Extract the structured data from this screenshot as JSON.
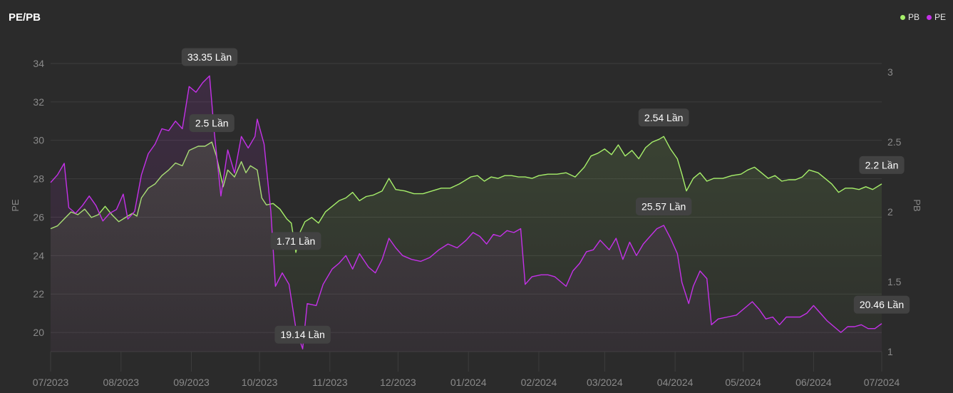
{
  "title": "PE/PB",
  "colors": {
    "pb": "#a6ef6a",
    "pe": "#c431e8",
    "grid": "#3d3d3d",
    "callout_bg": "#424242"
  },
  "chart_data": {
    "type": "line",
    "title": "PE/PB",
    "legend": {
      "position": "top-right",
      "entries": [
        "PB",
        "PE"
      ]
    },
    "x_ticks": [
      "07/2023",
      "08/2023",
      "09/2023",
      "10/2023",
      "11/2023",
      "12/2023",
      "01/2024",
      "02/2024",
      "03/2024",
      "04/2024",
      "05/2024",
      "06/2024",
      "07/2024"
    ],
    "x_range": [
      "2023-07-01",
      "2024-07-01"
    ],
    "y_left": {
      "label": "PE",
      "range": [
        19,
        35
      ],
      "ticks": [
        "20",
        "22",
        "24",
        "26",
        "28",
        "30",
        "32",
        "34"
      ]
    },
    "y_right": {
      "label": "PB",
      "range": [
        1,
        3.2
      ],
      "ticks": [
        "1",
        "1.5",
        "2",
        "2.5",
        "3"
      ]
    },
    "grid": true,
    "series": [
      {
        "name": "PB",
        "axis": "right",
        "color": "#a6ef6a",
        "points": [
          [
            "2023-07-01",
            1.88
          ],
          [
            "2023-07-04",
            1.9
          ],
          [
            "2023-07-07",
            1.95
          ],
          [
            "2023-07-10",
            2.0
          ],
          [
            "2023-07-13",
            1.98
          ],
          [
            "2023-07-16",
            2.02
          ],
          [
            "2023-07-19",
            1.96
          ],
          [
            "2023-07-22",
            1.98
          ],
          [
            "2023-07-25",
            2.04
          ],
          [
            "2023-07-28",
            1.98
          ],
          [
            "2023-07-31",
            1.93
          ],
          [
            "2023-08-03",
            1.96
          ],
          [
            "2023-08-06",
            1.99
          ],
          [
            "2023-08-08",
            1.97
          ],
          [
            "2023-08-10",
            2.1
          ],
          [
            "2023-08-13",
            2.17
          ],
          [
            "2023-08-16",
            2.2
          ],
          [
            "2023-08-19",
            2.26
          ],
          [
            "2023-08-22",
            2.3
          ],
          [
            "2023-08-25",
            2.35
          ],
          [
            "2023-08-28",
            2.33
          ],
          [
            "2023-08-31",
            2.44
          ],
          [
            "2023-09-04",
            2.47
          ],
          [
            "2023-09-07",
            2.47
          ],
          [
            "2023-09-10",
            2.5
          ],
          [
            "2023-09-12",
            2.4
          ],
          [
            "2023-09-15",
            2.18
          ],
          [
            "2023-09-17",
            2.3
          ],
          [
            "2023-09-20",
            2.25
          ],
          [
            "2023-09-23",
            2.36
          ],
          [
            "2023-09-25",
            2.28
          ],
          [
            "2023-09-27",
            2.33
          ],
          [
            "2023-09-30",
            2.3
          ],
          [
            "2023-10-02",
            2.1
          ],
          [
            "2023-10-04",
            2.05
          ],
          [
            "2023-10-07",
            2.06
          ],
          [
            "2023-10-10",
            2.02
          ],
          [
            "2023-10-13",
            1.95
          ],
          [
            "2023-10-15",
            1.92
          ],
          [
            "2023-10-17",
            1.71
          ],
          [
            "2023-10-19",
            1.86
          ],
          [
            "2023-10-21",
            1.93
          ],
          [
            "2023-10-24",
            1.96
          ],
          [
            "2023-10-27",
            1.92
          ],
          [
            "2023-10-30",
            2.0
          ],
          [
            "2023-11-02",
            2.04
          ],
          [
            "2023-11-05",
            2.08
          ],
          [
            "2023-11-08",
            2.1
          ],
          [
            "2023-11-11",
            2.14
          ],
          [
            "2023-11-14",
            2.08
          ],
          [
            "2023-11-17",
            2.11
          ],
          [
            "2023-11-20",
            2.12
          ],
          [
            "2023-11-24",
            2.15
          ],
          [
            "2023-11-27",
            2.24
          ],
          [
            "2023-11-30",
            2.16
          ],
          [
            "2023-12-04",
            2.15
          ],
          [
            "2023-12-08",
            2.13
          ],
          [
            "2023-12-12",
            2.13
          ],
          [
            "2023-12-16",
            2.15
          ],
          [
            "2023-12-20",
            2.17
          ],
          [
            "2023-12-24",
            2.17
          ],
          [
            "2023-12-28",
            2.2
          ],
          [
            "2024-01-02",
            2.25
          ],
          [
            "2024-01-05",
            2.26
          ],
          [
            "2024-01-08",
            2.22
          ],
          [
            "2024-01-11",
            2.25
          ],
          [
            "2024-01-14",
            2.24
          ],
          [
            "2024-01-17",
            2.26
          ],
          [
            "2024-01-20",
            2.26
          ],
          [
            "2024-01-23",
            2.25
          ],
          [
            "2024-01-26",
            2.25
          ],
          [
            "2024-01-29",
            2.24
          ],
          [
            "2024-02-01",
            2.26
          ],
          [
            "2024-02-05",
            2.27
          ],
          [
            "2024-02-09",
            2.27
          ],
          [
            "2024-02-13",
            2.28
          ],
          [
            "2024-02-17",
            2.25
          ],
          [
            "2024-02-21",
            2.32
          ],
          [
            "2024-02-24",
            2.4
          ],
          [
            "2024-02-27",
            2.42
          ],
          [
            "2024-03-01",
            2.45
          ],
          [
            "2024-03-04",
            2.41
          ],
          [
            "2024-03-07",
            2.48
          ],
          [
            "2024-03-10",
            2.4
          ],
          [
            "2024-03-13",
            2.44
          ],
          [
            "2024-03-16",
            2.38
          ],
          [
            "2024-03-19",
            2.46
          ],
          [
            "2024-03-22",
            2.5
          ],
          [
            "2024-03-25",
            2.52
          ],
          [
            "2024-03-27",
            2.54
          ],
          [
            "2024-03-30",
            2.45
          ],
          [
            "2024-04-02",
            2.38
          ],
          [
            "2024-04-04",
            2.27
          ],
          [
            "2024-04-06",
            2.15
          ],
          [
            "2024-04-09",
            2.24
          ],
          [
            "2024-04-12",
            2.28
          ],
          [
            "2024-04-15",
            2.22
          ],
          [
            "2024-04-18",
            2.24
          ],
          [
            "2024-04-22",
            2.24
          ],
          [
            "2024-04-26",
            2.26
          ],
          [
            "2024-04-30",
            2.27
          ],
          [
            "2024-05-03",
            2.3
          ],
          [
            "2024-05-06",
            2.32
          ],
          [
            "2024-05-09",
            2.28
          ],
          [
            "2024-05-12",
            2.24
          ],
          [
            "2024-05-15",
            2.26
          ],
          [
            "2024-05-18",
            2.22
          ],
          [
            "2024-05-21",
            2.23
          ],
          [
            "2024-05-24",
            2.23
          ],
          [
            "2024-05-27",
            2.25
          ],
          [
            "2024-05-30",
            2.3
          ],
          [
            "2024-06-03",
            2.28
          ],
          [
            "2024-06-06",
            2.24
          ],
          [
            "2024-06-09",
            2.2
          ],
          [
            "2024-06-12",
            2.14
          ],
          [
            "2024-06-15",
            2.17
          ],
          [
            "2024-06-18",
            2.17
          ],
          [
            "2024-06-21",
            2.16
          ],
          [
            "2024-06-24",
            2.18
          ],
          [
            "2024-06-27",
            2.16
          ],
          [
            "2024-07-01",
            2.2
          ]
        ]
      },
      {
        "name": "PE",
        "axis": "left",
        "color": "#c431e8",
        "points": [
          [
            "2023-07-01",
            27.8
          ],
          [
            "2023-07-04",
            28.2
          ],
          [
            "2023-07-07",
            28.8
          ],
          [
            "2023-07-09",
            26.5
          ],
          [
            "2023-07-12",
            26.2
          ],
          [
            "2023-07-15",
            26.6
          ],
          [
            "2023-07-18",
            27.1
          ],
          [
            "2023-07-21",
            26.6
          ],
          [
            "2023-07-24",
            25.8
          ],
          [
            "2023-07-27",
            26.2
          ],
          [
            "2023-07-30",
            26.4
          ],
          [
            "2023-08-02",
            27.2
          ],
          [
            "2023-08-04",
            25.9
          ],
          [
            "2023-08-07",
            26.3
          ],
          [
            "2023-08-10",
            28.2
          ],
          [
            "2023-08-13",
            29.3
          ],
          [
            "2023-08-16",
            29.8
          ],
          [
            "2023-08-19",
            30.6
          ],
          [
            "2023-08-22",
            30.5
          ],
          [
            "2023-08-25",
            31.0
          ],
          [
            "2023-08-28",
            30.6
          ],
          [
            "2023-08-31",
            32.8
          ],
          [
            "2023-09-03",
            32.5
          ],
          [
            "2023-09-06",
            33.0
          ],
          [
            "2023-09-09",
            33.35
          ],
          [
            "2023-09-11",
            30.5
          ],
          [
            "2023-09-14",
            27.1
          ],
          [
            "2023-09-17",
            29.5
          ],
          [
            "2023-09-20",
            28.3
          ],
          [
            "2023-09-23",
            30.2
          ],
          [
            "2023-09-26",
            29.6
          ],
          [
            "2023-09-29",
            30.2
          ],
          [
            "2023-09-30",
            31.1
          ],
          [
            "2023-10-03",
            29.8
          ],
          [
            "2023-10-06",
            26.3
          ],
          [
            "2023-10-08",
            22.4
          ],
          [
            "2023-10-11",
            23.1
          ],
          [
            "2023-10-14",
            22.5
          ],
          [
            "2023-10-17",
            20.2
          ],
          [
            "2023-10-20",
            19.14
          ],
          [
            "2023-10-22",
            21.5
          ],
          [
            "2023-10-26",
            21.4
          ],
          [
            "2023-10-29",
            22.5
          ],
          [
            "2023-11-02",
            23.3
          ],
          [
            "2023-11-05",
            23.6
          ],
          [
            "2023-11-08",
            24.0
          ],
          [
            "2023-11-11",
            23.3
          ],
          [
            "2023-11-14",
            24.1
          ],
          [
            "2023-11-18",
            23.4
          ],
          [
            "2023-11-21",
            23.1
          ],
          [
            "2023-11-24",
            23.8
          ],
          [
            "2023-11-27",
            24.9
          ],
          [
            "2023-11-30",
            24.4
          ],
          [
            "2023-12-03",
            24.0
          ],
          [
            "2023-12-07",
            23.8
          ],
          [
            "2023-12-11",
            23.7
          ],
          [
            "2023-12-15",
            23.9
          ],
          [
            "2023-12-19",
            24.3
          ],
          [
            "2023-12-23",
            24.6
          ],
          [
            "2023-12-27",
            24.4
          ],
          [
            "2023-12-31",
            24.8
          ],
          [
            "2024-01-03",
            25.2
          ],
          [
            "2024-01-06",
            25.0
          ],
          [
            "2024-01-09",
            24.6
          ],
          [
            "2024-01-12",
            25.1
          ],
          [
            "2024-01-15",
            25.0
          ],
          [
            "2024-01-18",
            25.3
          ],
          [
            "2024-01-21",
            25.2
          ],
          [
            "2024-01-24",
            25.4
          ],
          [
            "2024-01-26",
            22.5
          ],
          [
            "2024-01-29",
            22.9
          ],
          [
            "2024-02-02",
            23.0
          ],
          [
            "2024-02-05",
            23.0
          ],
          [
            "2024-02-08",
            22.9
          ],
          [
            "2024-02-13",
            22.4
          ],
          [
            "2024-02-16",
            23.2
          ],
          [
            "2024-02-19",
            23.6
          ],
          [
            "2024-02-22",
            24.2
          ],
          [
            "2024-02-25",
            24.3
          ],
          [
            "2024-02-28",
            24.8
          ],
          [
            "2024-03-03",
            24.3
          ],
          [
            "2024-03-06",
            24.9
          ],
          [
            "2024-03-09",
            23.8
          ],
          [
            "2024-03-12",
            24.7
          ],
          [
            "2024-03-15",
            24.0
          ],
          [
            "2024-03-18",
            24.6
          ],
          [
            "2024-03-21",
            25.0
          ],
          [
            "2024-03-24",
            25.4
          ],
          [
            "2024-03-27",
            25.57
          ],
          [
            "2024-03-30",
            24.9
          ],
          [
            "2024-04-02",
            24.1
          ],
          [
            "2024-04-04",
            22.6
          ],
          [
            "2024-04-07",
            21.5
          ],
          [
            "2024-04-09",
            22.4
          ],
          [
            "2024-04-12",
            23.2
          ],
          [
            "2024-04-15",
            22.8
          ],
          [
            "2024-04-17",
            20.4
          ],
          [
            "2024-04-20",
            20.7
          ],
          [
            "2024-04-24",
            20.8
          ],
          [
            "2024-04-28",
            20.9
          ],
          [
            "2024-05-02",
            21.3
          ],
          [
            "2024-05-05",
            21.6
          ],
          [
            "2024-05-08",
            21.2
          ],
          [
            "2024-05-11",
            20.7
          ],
          [
            "2024-05-14",
            20.8
          ],
          [
            "2024-05-17",
            20.4
          ],
          [
            "2024-05-20",
            20.8
          ],
          [
            "2024-05-23",
            20.8
          ],
          [
            "2024-05-26",
            20.8
          ],
          [
            "2024-05-29",
            21.0
          ],
          [
            "2024-06-01",
            21.4
          ],
          [
            "2024-06-04",
            21.0
          ],
          [
            "2024-06-07",
            20.6
          ],
          [
            "2024-06-10",
            20.3
          ],
          [
            "2024-06-13",
            20.0
          ],
          [
            "2024-06-16",
            20.3
          ],
          [
            "2024-06-19",
            20.3
          ],
          [
            "2024-06-22",
            20.4
          ],
          [
            "2024-06-25",
            20.2
          ],
          [
            "2024-06-28",
            20.2
          ],
          [
            "2024-07-01",
            20.46
          ]
        ]
      }
    ],
    "annotations": [
      {
        "series": "PE",
        "x": "2023-09-09",
        "y": 33.35,
        "text": "33.35 Lần"
      },
      {
        "series": "PB",
        "x": "2023-09-10",
        "y": 2.5,
        "text": "2.5 Lần"
      },
      {
        "series": "PB",
        "x": "2023-10-17",
        "y": 1.71,
        "text": "1.71 Lần"
      },
      {
        "series": "PE",
        "x": "2023-10-20",
        "y": 19.14,
        "text": "19.14 Lần"
      },
      {
        "series": "PB",
        "x": "2024-03-27",
        "y": 2.54,
        "text": "2.54 Lần"
      },
      {
        "series": "PE",
        "x": "2024-03-27",
        "y": 25.57,
        "text": "25.57 Lần"
      },
      {
        "series": "PB",
        "x": "2024-07-01",
        "y": 2.2,
        "text": "2.2 Lần"
      },
      {
        "series": "PE",
        "x": "2024-07-01",
        "y": 20.46,
        "text": "20.46 Lần"
      }
    ]
  }
}
